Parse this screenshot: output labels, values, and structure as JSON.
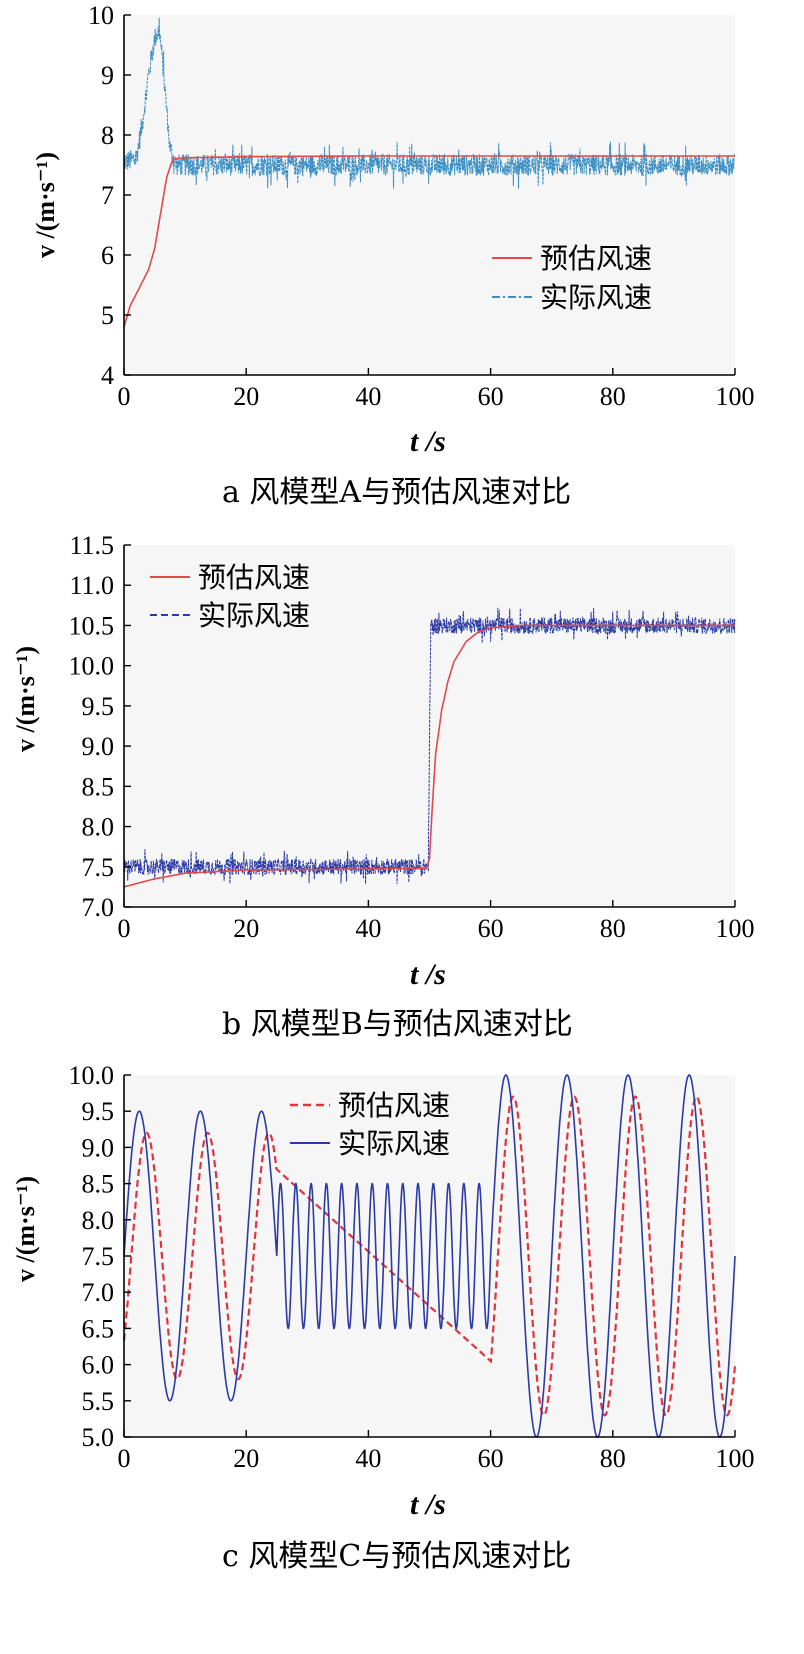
{
  "chart_data": [
    {
      "id": "a",
      "type": "line",
      "caption": "a  风模型A与预估风速对比",
      "xlabel": "t /s",
      "ylabel": "v /(m·s⁻¹)",
      "xlim": [
        0,
        100
      ],
      "ylim": [
        4,
        10
      ],
      "xticks": [
        "0",
        "20",
        "40",
        "60",
        "80",
        "100"
      ],
      "yticks": [
        "4",
        "5",
        "6",
        "7",
        "8",
        "9",
        "10"
      ],
      "legend_position": "lower-right",
      "series": [
        {
          "name": "预估风速",
          "style": "solid",
          "color": "#e04a4a",
          "x": [
            0,
            1,
            2,
            3,
            4,
            5,
            6,
            7,
            8,
            10,
            20,
            40,
            60,
            80,
            100
          ],
          "y": [
            4.8,
            5.15,
            5.35,
            5.55,
            5.75,
            6.1,
            6.7,
            7.3,
            7.6,
            7.62,
            7.64,
            7.65,
            7.65,
            7.65,
            7.65
          ]
        },
        {
          "name": "实际风速",
          "style": "dashdot",
          "color": "#3b8fc4",
          "noise": 0.18,
          "x": [
            0,
            2,
            3,
            4,
            5,
            5.8,
            6.5,
            7.5,
            8.5,
            100
          ],
          "y": [
            7.55,
            7.6,
            8.2,
            9.0,
            9.6,
            9.75,
            9.0,
            7.8,
            7.5,
            7.5
          ]
        }
      ]
    },
    {
      "id": "b",
      "type": "line",
      "caption": "b  风模型B与预估风速对比",
      "xlabel": "t /s",
      "ylabel": "v /(m·s⁻¹)",
      "xlim": [
        0,
        100
      ],
      "ylim": [
        7.0,
        11.5
      ],
      "xticks": [
        "0",
        "20",
        "40",
        "60",
        "80",
        "100"
      ],
      "yticks": [
        "7.0",
        "7.5",
        "8.0",
        "8.5",
        "9.0",
        "9.5",
        "10.0",
        "10.5",
        "11.0",
        "11.5"
      ],
      "legend_position": "upper-left",
      "series": [
        {
          "name": "预估风速",
          "style": "solid",
          "color": "#e04a4a",
          "x": [
            0,
            5,
            10,
            20,
            49.5,
            50,
            50.5,
            51,
            52,
            53,
            54,
            56,
            58,
            60,
            65,
            70,
            100
          ],
          "y": [
            7.25,
            7.35,
            7.42,
            7.46,
            7.48,
            7.6,
            8.3,
            8.9,
            9.45,
            9.8,
            10.05,
            10.3,
            10.42,
            10.47,
            10.5,
            10.5,
            10.5
          ]
        },
        {
          "name": "实际风速",
          "style": "dashed",
          "color": "#2b3aa6",
          "noise": 0.1,
          "x": [
            0,
            49.8,
            50.2,
            100
          ],
          "y": [
            7.5,
            7.5,
            10.5,
            10.5
          ]
        }
      ]
    },
    {
      "id": "c",
      "type": "line",
      "caption": "c  风模型C与预估风速对比",
      "xlabel": "t /s",
      "ylabel": "v /(m·s⁻¹)",
      "xlim": [
        0,
        100
      ],
      "ylim": [
        5.0,
        10.0
      ],
      "xticks": [
        "0",
        "20",
        "40",
        "60",
        "80",
        "100"
      ],
      "yticks": [
        "5.0",
        "5.5",
        "6.0",
        "6.5",
        "7.0",
        "7.5",
        "8.0",
        "8.5",
        "9.0",
        "9.5",
        "10.0"
      ],
      "legend_position": "top-center",
      "segments": [
        {
          "x_range": [
            0,
            25
          ],
          "mean": 7.5,
          "amplitude": 2.0,
          "period": 10
        },
        {
          "x_range": [
            25,
            60
          ],
          "mean": 7.5,
          "amplitude": 1.0,
          "period": 2.5
        },
        {
          "x_range": [
            60,
            100
          ],
          "mean": 7.5,
          "amplitude": 2.5,
          "period": 10
        }
      ],
      "series": [
        {
          "name": "预估风速",
          "style": "dashed",
          "color": "#e0343c",
          "amplitudes": [
            1.7,
            0,
            2.2
          ],
          "lag": 1.2
        },
        {
          "name": "实际风速",
          "style": "solid",
          "color": "#2b3aa6"
        }
      ]
    }
  ]
}
